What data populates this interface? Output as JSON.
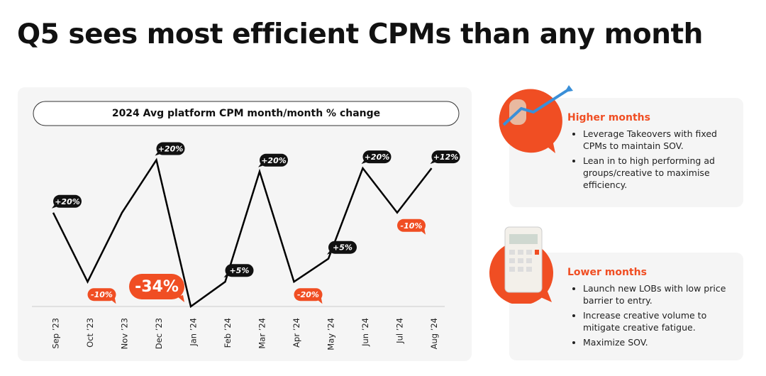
{
  "title": "Q5 sees most efficient CPMs than any month",
  "chart_data": {
    "type": "line",
    "title": "2024 Avg platform CPM month/month % change",
    "categories": [
      "Sep ’23",
      "Oct ’23",
      "Nov ’23",
      "Dec ’23",
      "Jan ’24",
      "Feb ’24",
      "Mar ’24",
      "Apr ’24",
      "May ’24",
      "Jun ’24",
      "Jul ’24",
      "Aug ’24"
    ],
    "values": [
      57,
      15,
      57,
      89,
      0,
      15,
      82,
      15,
      29,
      84,
      57,
      84
    ],
    "ylim": [
      0,
      100
    ],
    "color": "#000000",
    "annotations": [
      {
        "category": "Sep ’23",
        "text": "+20%",
        "tone": "dark"
      },
      {
        "category": "Oct ’23",
        "text": "-10%",
        "tone": "orange"
      },
      {
        "category": "Dec ’23",
        "text": "+20%",
        "tone": "dark"
      },
      {
        "category": "Jan ’24",
        "text": "-34%",
        "tone": "big"
      },
      {
        "category": "Feb ’24",
        "text": "+5%",
        "tone": "dark"
      },
      {
        "category": "Mar ’24",
        "text": "+20%",
        "tone": "dark"
      },
      {
        "category": "Apr ’24",
        "text": "-20%",
        "tone": "orange"
      },
      {
        "category": "May ’24",
        "text": "+5%",
        "tone": "dark"
      },
      {
        "category": "Jun ’24",
        "text": "+20%",
        "tone": "dark"
      },
      {
        "category": "Jul ’24",
        "text": "-10%",
        "tone": "orange"
      },
      {
        "category": "Aug ’24",
        "text": "+12%",
        "tone": "dark"
      }
    ]
  },
  "panels": [
    {
      "heading": "Higher months",
      "bullets": [
        "Leverage Takeovers with fixed CPMs to maintain SOV.",
        "Lean in to high performing ad groups/creative to maximise efficiency."
      ]
    },
    {
      "heading": "Lower months",
      "bullets": [
        "Launch new LOBs with low price barrier to entry.",
        "Increase creative volume to mitigate creative fatigue.",
        "Maximize SOV."
      ]
    }
  ]
}
